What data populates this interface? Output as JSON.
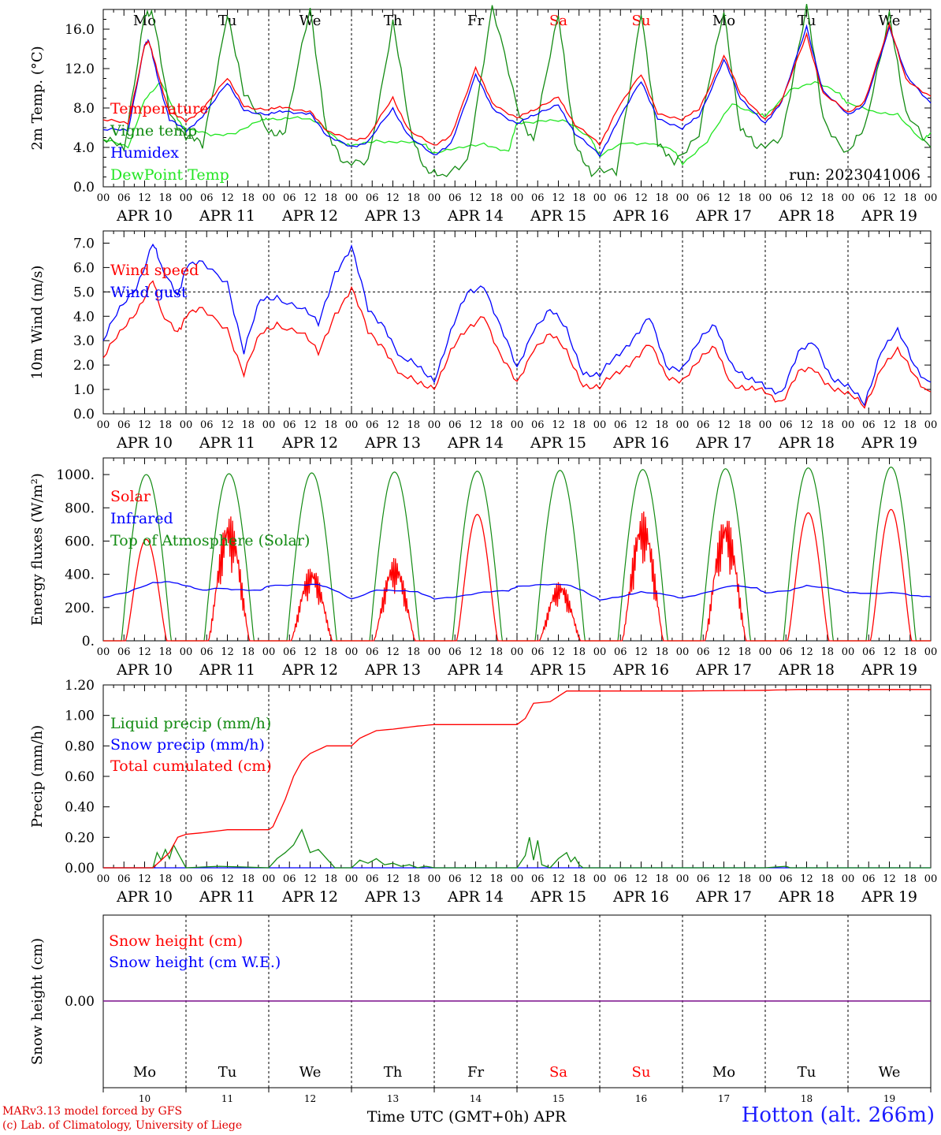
{
  "colors": {
    "red": "#ff0000",
    "green": "#138b13",
    "blue": "#0000ff",
    "lightgreen": "#22e622",
    "purple": "#7a0f8c",
    "weekend": "#ff0000",
    "axis": "#000000"
  },
  "hour_ticks": [
    "00",
    "06",
    "12",
    "18"
  ],
  "date_labels": [
    "APR 10",
    "APR 11",
    "APR 12",
    "APR 13",
    "APR 14",
    "APR 15",
    "APR 16",
    "APR 17",
    "APR 18",
    "APR 19"
  ],
  "weekdays": [
    "Mo",
    "Tu",
    "We",
    "Th",
    "Fr",
    "Sa",
    "Su",
    "Mo",
    "Tu",
    "We"
  ],
  "weekend_days": [
    5,
    6
  ],
  "day_numbers": [
    "10",
    "11",
    "12",
    "13",
    "14",
    "15",
    "16",
    "17",
    "18",
    "19"
  ],
  "run_label": "run: 2023041006",
  "x_axis_title": "Time UTC (GMT+0h) APR",
  "credit_line1": "MARv3.13 model forced by GFS",
  "credit_line2": "(c) Lab. of Climatology, University of Liege",
  "station_label": "Hotton (alt. 266m)",
  "chart_data": [
    {
      "type": "line",
      "ylabel": "2m Temp. (°C)",
      "ylim": [
        0,
        18
      ],
      "ytick_labels": [
        "0.0",
        "4.0",
        "8.0",
        "12.0",
        "16.0"
      ],
      "x_unit": "days since APR 10 00 UTC",
      "legend": [
        "Temperature",
        "Vigne temp",
        "Humidex",
        "DewPoint Temp"
      ],
      "series": [
        {
          "name": "Temperature",
          "color": "red",
          "x": [
            0,
            0.3,
            0.5,
            0.55,
            0.65,
            0.8,
            1.0,
            1.2,
            1.5,
            1.7,
            2.0,
            2.2,
            2.5,
            2.7,
            3.0,
            3.2,
            3.5,
            3.7,
            4.0,
            4.2,
            4.5,
            4.7,
            5.0,
            5.2,
            5.5,
            5.7,
            6.0,
            6.2,
            6.5,
            6.7,
            7.0,
            7.2,
            7.5,
            7.7,
            8.0,
            8.2,
            8.5,
            8.7,
            9.0,
            9.2,
            9.5,
            9.7,
            10.0
          ],
          "values": [
            6.8,
            6.3,
            14.5,
            14.6,
            12.0,
            7.5,
            6.6,
            8.0,
            10.9,
            8.3,
            7.8,
            8.0,
            7.8,
            5.5,
            4.9,
            5.0,
            9.0,
            5.8,
            4.0,
            5.3,
            12.0,
            8.5,
            7.1,
            7.6,
            9.3,
            6.2,
            4.3,
            7.8,
            11.3,
            7.6,
            6.7,
            7.9,
            13.4,
            9.3,
            7.0,
            8.6,
            15.5,
            9.5,
            7.4,
            8.8,
            16.3,
            11.0,
            9.2
          ]
        },
        {
          "name": "Vigne temp",
          "color": "green",
          "x": [
            0,
            0.25,
            0.5,
            0.6,
            0.8,
            1.0,
            1.2,
            1.5,
            1.7,
            2.0,
            2.2,
            2.5,
            2.7,
            2.9,
            3.2,
            3.5,
            3.7,
            3.9,
            4.1,
            4.4,
            4.7,
            5.0,
            5.2,
            5.5,
            5.7,
            5.9,
            6.2,
            6.5,
            6.7,
            6.9,
            7.2,
            7.5,
            7.7,
            7.9,
            8.2,
            8.5,
            8.7,
            9.0,
            9.2,
            9.5,
            9.7,
            10.0
          ],
          "values": [
            4.8,
            3.5,
            18.0,
            17.0,
            8.0,
            5.0,
            4.0,
            18.0,
            9.0,
            6.0,
            5.5,
            18.0,
            6.0,
            1.8,
            3.0,
            16.5,
            6.0,
            2.0,
            0.5,
            3.0,
            18.0,
            8.0,
            5.0,
            17.0,
            5.0,
            1.0,
            1.5,
            18.0,
            4.0,
            3.0,
            5.0,
            18.0,
            6.0,
            3.5,
            5.5,
            18.0,
            7.0,
            3.5,
            5.5,
            18.0,
            7.0,
            4.0
          ]
        },
        {
          "name": "Humidex",
          "color": "blue",
          "x": [
            0,
            0.3,
            0.5,
            0.55,
            0.65,
            0.8,
            1.0,
            1.2,
            1.5,
            1.7,
            2.0,
            2.2,
            2.5,
            2.7,
            3.0,
            3.2,
            3.5,
            3.7,
            4.0,
            4.2,
            4.5,
            4.7,
            5.0,
            5.2,
            5.5,
            5.7,
            6.0,
            6.2,
            6.5,
            6.7,
            7.0,
            7.2,
            7.5,
            7.7,
            8.0,
            8.2,
            8.5,
            8.7,
            9.0,
            9.2,
            9.5,
            9.7,
            10.0
          ],
          "values": [
            5.8,
            5.6,
            14.6,
            14.7,
            11.5,
            6.8,
            5.6,
            7.3,
            10.4,
            7.9,
            7.3,
            7.6,
            7.6,
            5.0,
            4.2,
            4.5,
            7.9,
            5.2,
            3.0,
            4.5,
            11.3,
            8.0,
            6.5,
            7.1,
            8.5,
            5.3,
            3.2,
            6.5,
            10.6,
            7.1,
            5.8,
            7.2,
            13.0,
            8.8,
            6.6,
            8.5,
            16.3,
            9.7,
            7.2,
            8.5,
            16.0,
            11.5,
            8.5
          ]
        },
        {
          "name": "DewPoint Temp",
          "color": "lightgreen",
          "x": [
            0,
            0.3,
            0.5,
            0.7,
            0.9,
            1.0,
            1.3,
            1.6,
            1.9,
            2.0,
            2.3,
            2.6,
            2.9,
            3.0,
            3.3,
            3.6,
            3.9,
            4.0,
            4.3,
            4.6,
            4.9,
            5.0,
            5.3,
            5.6,
            5.9,
            6.0,
            6.3,
            6.6,
            6.9,
            7.0,
            7.3,
            7.6,
            7.9,
            8.0,
            8.3,
            8.6,
            8.9,
            9.0,
            9.3,
            9.6,
            9.9,
            10.0
          ],
          "values": [
            4.8,
            3.9,
            9.0,
            10.5,
            7.0,
            5.8,
            5.2,
            5.6,
            6.6,
            7.0,
            7.0,
            6.5,
            4.5,
            4.0,
            4.8,
            4.5,
            4.2,
            3.5,
            3.8,
            4.5,
            3.5,
            6.5,
            6.8,
            6.5,
            5.0,
            3.0,
            4.5,
            4.5,
            3.5,
            2.5,
            4.5,
            8.5,
            7.5,
            7.0,
            10.0,
            10.5,
            9.5,
            8.5,
            7.5,
            7.5,
            4.5,
            5.5
          ]
        }
      ]
    },
    {
      "type": "line",
      "ylabel": "10m Wind (m/s)",
      "ylim": [
        0,
        7.5
      ],
      "ytick_labels": [
        "0.0",
        "1.0",
        "2.0",
        "3.0",
        "4.0",
        "5.0",
        "6.0",
        "7.0"
      ],
      "reference_line": 5.0,
      "legend": [
        "Wind speed",
        "Wind gust"
      ],
      "series": [
        {
          "name": "Wind speed",
          "color": "red",
          "x": [
            0,
            0.2,
            0.4,
            0.6,
            0.7,
            0.9,
            1.0,
            1.2,
            1.5,
            1.7,
            1.9,
            2.1,
            2.4,
            2.6,
            2.8,
            3.0,
            3.2,
            3.4,
            3.6,
            3.8,
            4.0,
            4.2,
            4.4,
            4.6,
            4.8,
            5.0,
            5.2,
            5.4,
            5.6,
            5.8,
            6.0,
            6.2,
            6.4,
            6.6,
            6.8,
            7.0,
            7.2,
            7.4,
            7.6,
            7.8,
            8.0,
            8.2,
            8.4,
            8.6,
            8.8,
            9.0,
            9.2,
            9.4,
            9.6,
            9.8,
            10.0
          ],
          "values": [
            2.3,
            3.2,
            4.3,
            5.5,
            4.0,
            3.5,
            4.0,
            4.2,
            3.6,
            1.6,
            3.2,
            3.8,
            3.3,
            2.4,
            4.2,
            5.1,
            3.3,
            2.8,
            1.5,
            1.2,
            1.2,
            2.5,
            3.4,
            4.2,
            2.3,
            1.2,
            2.8,
            3.2,
            2.5,
            1.3,
            1.0,
            1.6,
            2.3,
            2.8,
            1.5,
            1.5,
            2.1,
            2.7,
            1.3,
            0.9,
            0.9,
            0.6,
            1.6,
            1.8,
            1.2,
            0.7,
            0.3,
            2.0,
            2.5,
            1.6,
            0.9
          ]
        },
        {
          "name": "Wind gust",
          "color": "blue",
          "x": [
            0,
            0.2,
            0.4,
            0.6,
            0.7,
            0.9,
            1.0,
            1.2,
            1.5,
            1.7,
            1.9,
            2.1,
            2.4,
            2.6,
            2.8,
            3.0,
            3.2,
            3.4,
            3.6,
            3.8,
            4.0,
            4.2,
            4.4,
            4.6,
            4.8,
            5.0,
            5.2,
            5.4,
            5.6,
            5.8,
            6.0,
            6.2,
            6.4,
            6.6,
            6.8,
            7.0,
            7.2,
            7.4,
            7.6,
            7.8,
            8.0,
            8.2,
            8.4,
            8.6,
            8.8,
            9.0,
            9.2,
            9.4,
            9.6,
            9.8,
            10.0
          ],
          "values": [
            3.0,
            4.2,
            5.3,
            7.0,
            5.9,
            5.0,
            6.0,
            6.1,
            5.5,
            2.5,
            4.6,
            4.9,
            4.3,
            3.6,
            5.9,
            6.8,
            4.2,
            3.7,
            2.2,
            1.9,
            1.5,
            3.3,
            4.9,
            5.4,
            3.5,
            1.8,
            3.6,
            4.2,
            3.4,
            1.8,
            1.5,
            2.3,
            3.2,
            3.9,
            1.9,
            2.0,
            2.9,
            3.6,
            2.1,
            1.3,
            1.1,
            1.0,
            2.4,
            2.9,
            1.6,
            1.0,
            0.4,
            2.7,
            3.3,
            2.0,
            1.3
          ]
        }
      ]
    },
    {
      "type": "line",
      "ylabel": "Energy fluxes (W/m²)",
      "ylim": [
        0,
        1100
      ],
      "ytick_labels": [
        "0.",
        "200.",
        "400.",
        "600.",
        "800.",
        "1000."
      ],
      "legend": [
        "Solar",
        "Infrared",
        "Top of Atmosphere (Solar)"
      ],
      "toa_peaks": [
        1000,
        1005,
        1010,
        1015,
        1020,
        1025,
        1030,
        1035,
        1040,
        1045
      ],
      "toa_day_window": [
        0.22,
        0.82
      ],
      "solar_peaks": [
        610,
        760,
        450,
        500,
        760,
        360,
        780,
        760,
        770,
        790
      ],
      "series": [
        {
          "name": "Infrared",
          "color": "blue",
          "x": [
            0,
            0.3,
            0.6,
            0.8,
            1.0,
            1.2,
            1.4,
            1.6,
            1.9,
            2.0,
            2.3,
            2.6,
            2.8,
            3.0,
            3.3,
            3.6,
            3.8,
            4.0,
            4.3,
            4.6,
            4.9,
            5.0,
            5.3,
            5.6,
            5.8,
            6.0,
            6.3,
            6.5,
            6.8,
            7.0,
            7.3,
            7.6,
            7.9,
            8.0,
            8.3,
            8.5,
            8.8,
            9.0,
            9.3,
            9.6,
            9.8,
            10.0
          ],
          "values": [
            260,
            290,
            350,
            360,
            330,
            300,
            320,
            310,
            300,
            330,
            340,
            340,
            300,
            250,
            310,
            300,
            290,
            255,
            270,
            290,
            300,
            330,
            340,
            335,
            300,
            250,
            270,
            290,
            280,
            260,
            290,
            330,
            320,
            290,
            300,
            330,
            320,
            290,
            280,
            290,
            275,
            265
          ]
        }
      ]
    },
    {
      "type": "line",
      "ylabel": "Precip (mm/h)",
      "ylim": [
        0,
        1.2
      ],
      "ytick_labels": [
        "0.00",
        "0.20",
        "0.40",
        "0.60",
        "0.80",
        "1.00",
        "1.20"
      ],
      "legend": [
        "Liquid precip (mm/h)",
        "Snow precip (mm/h)",
        "Total cumulated (cm)"
      ],
      "series": [
        {
          "name": "Total cumulated (cm)",
          "color": "red",
          "x": [
            0,
            0.6,
            0.8,
            0.9,
            1.0,
            1.2,
            1.5,
            2.0,
            2.05,
            2.2,
            2.3,
            2.4,
            2.5,
            2.7,
            3.0,
            3.1,
            3.3,
            3.5,
            3.8,
            4.0,
            5.0,
            5.1,
            5.2,
            5.4,
            5.6,
            6.0,
            7.0,
            8.0,
            8.4,
            9.0,
            10.0
          ],
          "values": [
            0,
            0,
            0.1,
            0.2,
            0.22,
            0.23,
            0.25,
            0.25,
            0.27,
            0.45,
            0.6,
            0.7,
            0.75,
            0.8,
            0.8,
            0.85,
            0.9,
            0.91,
            0.93,
            0.94,
            0.94,
            0.98,
            1.08,
            1.09,
            1.16,
            1.16,
            1.16,
            1.165,
            1.17,
            1.17,
            1.17
          ]
        },
        {
          "name": "Liquid precip (mm/h)",
          "color": "green",
          "x": [
            0,
            0.6,
            0.65,
            0.7,
            0.75,
            0.8,
            0.85,
            0.9,
            0.95,
            1.0,
            1.4,
            2.0,
            2.1,
            2.2,
            2.3,
            2.4,
            2.5,
            2.6,
            2.7,
            2.8,
            3.0,
            3.1,
            3.2,
            3.3,
            3.4,
            3.5,
            3.6,
            3.7,
            3.8,
            3.9,
            4.0,
            5.0,
            5.1,
            5.15,
            5.2,
            5.25,
            5.3,
            5.4,
            5.5,
            5.6,
            5.65,
            5.7,
            5.75,
            5.8,
            6.0,
            8.0,
            8.25,
            8.3,
            10.0
          ],
          "values": [
            0,
            0,
            0.1,
            0.05,
            0.12,
            0.06,
            0.15,
            0.1,
            0.05,
            0.0,
            0.01,
            0.0,
            0.06,
            0.1,
            0.15,
            0.25,
            0.1,
            0.12,
            0.06,
            0.0,
            0.0,
            0.05,
            0.03,
            0.06,
            0.02,
            0.03,
            0.01,
            0.02,
            0.0,
            0.01,
            0.0,
            0.0,
            0.08,
            0.2,
            0.05,
            0.18,
            0.02,
            0.0,
            0.06,
            0.1,
            0.04,
            0.07,
            0.02,
            0.0,
            0.0,
            0.0,
            0.01,
            0.0,
            0.0
          ]
        },
        {
          "name": "Snow precip (mm/h)",
          "color": "blue",
          "x": [
            0,
            10
          ],
          "values": [
            0,
            0
          ]
        }
      ]
    },
    {
      "type": "line",
      "ylabel": "Snow height (cm)",
      "ytick_labels": [
        "0.00"
      ],
      "legend": [
        "Snow height (cm)",
        "Snow height (cm W.E.)"
      ],
      "series": [
        {
          "name": "Snow height (cm)",
          "color": "red",
          "x": [
            0,
            10
          ],
          "values": [
            0,
            0
          ]
        },
        {
          "name": "Snow height (cm W.E.)",
          "color": "blue",
          "x": [
            0,
            10
          ],
          "values": [
            0,
            0
          ]
        }
      ]
    }
  ]
}
